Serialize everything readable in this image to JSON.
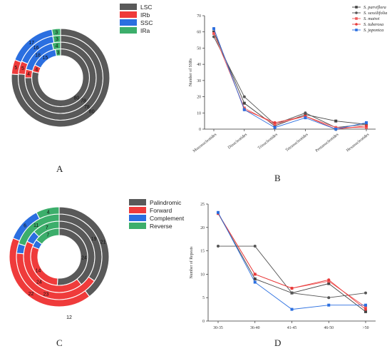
{
  "panel_letters": [
    "A",
    "B",
    "C",
    "D"
  ],
  "chart_data": [
    {
      "type": "donut",
      "panel": "A",
      "categories": [
        "LSC",
        "IRb",
        "SSC",
        "IRa"
      ],
      "colors": [
        "#595959",
        "#ef3b3b",
        "#2b6fe0",
        "#3cae6b"
      ],
      "legend_position": "top",
      "rings": [
        {
          "values": [
            80,
            4,
            15,
            3
          ],
          "labels": [
            "80",
            "4",
            "15",
            "3"
          ]
        },
        {
          "values": [
            78,
            4,
            18,
            4
          ],
          "labels": [
            "78",
            "4",
            "18",
            "4"
          ]
        },
        {
          "values": [
            78,
            5,
            16,
            3
          ],
          "labels": [
            "78",
            "5",
            "16",
            "3"
          ]
        },
        {
          "values": [
            80,
            5,
            17,
            3
          ],
          "labels": [
            "80",
            "5",
            "17",
            "3"
          ]
        }
      ]
    },
    {
      "type": "line",
      "panel": "B",
      "categories": [
        "Mononucleotides",
        "Dinucleotides",
        "Trinucleotides",
        "Tetranucleotides",
        "Pentanucleotides",
        "Hexanucleotides"
      ],
      "ylabel": "Number of SSRs",
      "ylim": [
        0,
        70
      ],
      "yticks": [
        0,
        10,
        20,
        30,
        40,
        50,
        60,
        70
      ],
      "legend_position": "top-right",
      "grid": false,
      "series": [
        {
          "name": "S. parviflora",
          "color": "#444444",
          "marker": "square",
          "values": [
            60,
            16,
            2,
            9,
            5,
            3
          ]
        },
        {
          "name": "S. sessilifolia",
          "color": "#555555",
          "marker": "circle",
          "values": [
            57,
            20,
            3,
            10,
            1,
            3
          ]
        },
        {
          "name": "S. mairei",
          "color": "#ef5a5a",
          "marker": "square",
          "values": [
            59,
            13,
            3,
            8,
            1,
            1
          ]
        },
        {
          "name": "S. tuberosa",
          "color": "#e83a3a",
          "marker": "circle",
          "values": [
            62,
            12,
            4,
            8,
            0,
            2
          ]
        },
        {
          "name": "S. japonica",
          "color": "#2b6fe0",
          "marker": "square",
          "values": [
            62,
            12,
            1,
            7,
            0,
            4
          ]
        }
      ]
    },
    {
      "type": "donut",
      "panel": "C",
      "categories": [
        "Palindromic",
        "Forward",
        "Complement",
        "Reverse"
      ],
      "colors": [
        "#595959",
        "#ef3b3b",
        "#2b6fe0",
        "#3cae6b"
      ],
      "legend_position": "top",
      "rings": [
        {
          "values": [
            24,
            14,
            2,
            7
          ],
          "labels": [
            "24",
            "14",
            "",
            "7"
          ]
        },
        {
          "values": [
            22,
            24,
            3,
            7
          ],
          "labels": [
            "",
            "24",
            "",
            "7"
          ]
        },
        {
          "values": [
            19,
            23,
            2,
            11
          ],
          "labels": [
            "19",
            "23",
            "",
            "11"
          ]
        },
        {
          "values": [
            21,
            22,
            6,
            4
          ],
          "labels": [
            "21",
            "22",
            "6",
            "4"
          ]
        }
      ],
      "outer_label": "12"
    },
    {
      "type": "line",
      "panel": "D",
      "categories": [
        "30-35",
        "36-40",
        "41-45",
        "46-50",
        ">50"
      ],
      "ylabel": "Number of Repeats",
      "ylim": [
        0,
        25
      ],
      "yticks": [
        0,
        5,
        10,
        15,
        20,
        25
      ],
      "grid": false,
      "series": [
        {
          "color": "#444444",
          "marker": "square",
          "values": [
            23,
            9,
            6,
            8,
            2
          ]
        },
        {
          "color": "#555555",
          "marker": "circle",
          "values": [
            16,
            16,
            6,
            5,
            6
          ]
        },
        {
          "color": "#ef5a5a",
          "marker": "square",
          "values": [
            23,
            10,
            7,
            8.5,
            3
          ]
        },
        {
          "color": "#e83a3a",
          "marker": "circle",
          "values": [
            23,
            10,
            7,
            8.8,
            2.5
          ]
        },
        {
          "color": "#2b6fe0",
          "marker": "square",
          "values": [
            23.2,
            8.3,
            2.5,
            3.4,
            3.4
          ]
        }
      ]
    }
  ]
}
